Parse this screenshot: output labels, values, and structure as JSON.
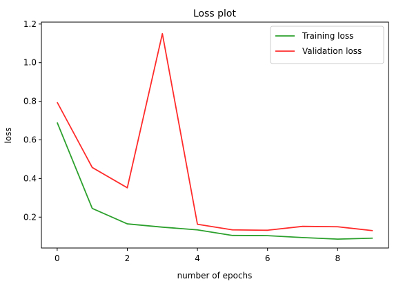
{
  "chart_data": {
    "type": "line",
    "title": "Loss plot",
    "xlabel": "number of epochs",
    "ylabel": "loss",
    "x": [
      0,
      1,
      2,
      3,
      4,
      5,
      6,
      7,
      8,
      9
    ],
    "xlim": [
      -0.45,
      9.45
    ],
    "ylim": [
      0.04,
      1.21
    ],
    "xticks": [
      0,
      2,
      4,
      6,
      8
    ],
    "yticks": [
      0.2,
      0.4,
      0.6,
      0.8,
      1.0,
      1.2
    ],
    "xtick_labels": [
      "0",
      "2",
      "4",
      "6",
      "8"
    ],
    "ytick_labels": [
      "0.2",
      "0.4",
      "0.6",
      "0.8",
      "1.0",
      "1.2"
    ],
    "grid": false,
    "legend_position": "top-right",
    "series": [
      {
        "name": "Training loss",
        "color": "#2ca02c",
        "values": [
          0.69,
          0.245,
          0.165,
          0.148,
          0.134,
          0.105,
          0.104,
          0.094,
          0.086,
          0.091
        ]
      },
      {
        "name": "Validation loss",
        "color": "#ff2b2b",
        "values": [
          0.795,
          0.457,
          0.352,
          1.15,
          0.163,
          0.134,
          0.132,
          0.152,
          0.15,
          0.13
        ]
      }
    ]
  }
}
